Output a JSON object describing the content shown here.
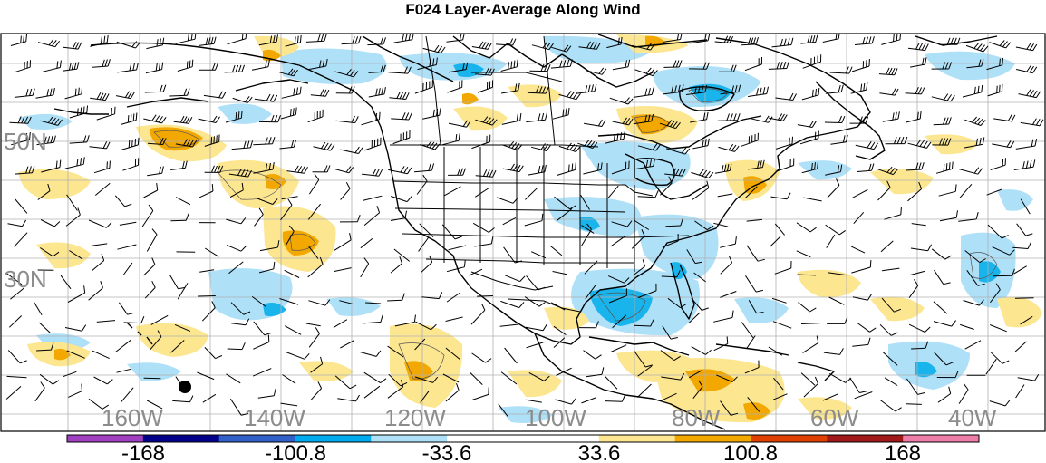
{
  "title": "F024 Layer-Average Along Wind",
  "map": {
    "projection": "lat-lon",
    "longitude_labels": [
      "160W",
      "140W",
      "120W",
      "100W",
      "80W",
      "60W",
      "40W"
    ],
    "latitude_labels": [
      "50N",
      "30N"
    ],
    "features": [
      "coastlines",
      "country borders",
      "US state borders",
      "wind barbs",
      "contour lines",
      "filled contours"
    ],
    "marker": "black-dot"
  },
  "colorbar": {
    "labels": [
      "-168",
      "-100.8",
      "-33.6",
      "33.6",
      "100.8",
      "168"
    ],
    "colors": [
      "#a040c0",
      "#00008b",
      "#3060c8",
      "#00aaee",
      "#aee0f8",
      "#ffffff",
      "#ffffff",
      "#fce690",
      "#f2a800",
      "#e04000",
      "#a01818",
      "#ec7ca8"
    ]
  },
  "fill_colors": {
    "light_blue": "#aee0f8",
    "blue": "#1ab4ec",
    "yellow": "#fce690",
    "orange": "#f2a800"
  }
}
